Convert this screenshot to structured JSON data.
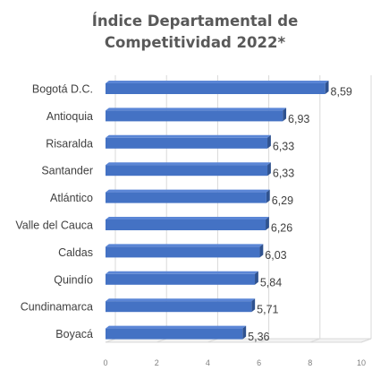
{
  "chart_data": {
    "type": "bar",
    "orientation": "horizontal",
    "title_line1": "Índice Departamental de",
    "title_line2": "Competitividad 2022*",
    "categories": [
      "Bogotá  D.C.",
      "Antioquia",
      "Risaralda",
      "Santander",
      "Atlántico",
      "Valle del Cauca",
      "Caldas",
      "Quindío",
      "Cundinamarca",
      "Boyacá"
    ],
    "values": [
      8.59,
      6.93,
      6.33,
      6.33,
      6.29,
      6.26,
      6.03,
      5.84,
      5.71,
      5.36
    ],
    "value_labels": [
      "8,59",
      "6,93",
      "6,33",
      "6,33",
      "6,29",
      "6,26",
      "6,03",
      "5,84",
      "5,71",
      "5,36"
    ],
    "xlim": [
      0,
      10
    ],
    "xticks": [
      "0",
      "2",
      "4",
      "6",
      "8",
      "10"
    ],
    "xlabel": "",
    "ylabel": "",
    "grid": true,
    "legend": "none",
    "colors": {
      "bar": "#4472c4",
      "bar_top": "#5b86d6",
      "bar_shadow": "#2f528f",
      "grid": "#d9d9d9",
      "text": "#404040"
    }
  }
}
